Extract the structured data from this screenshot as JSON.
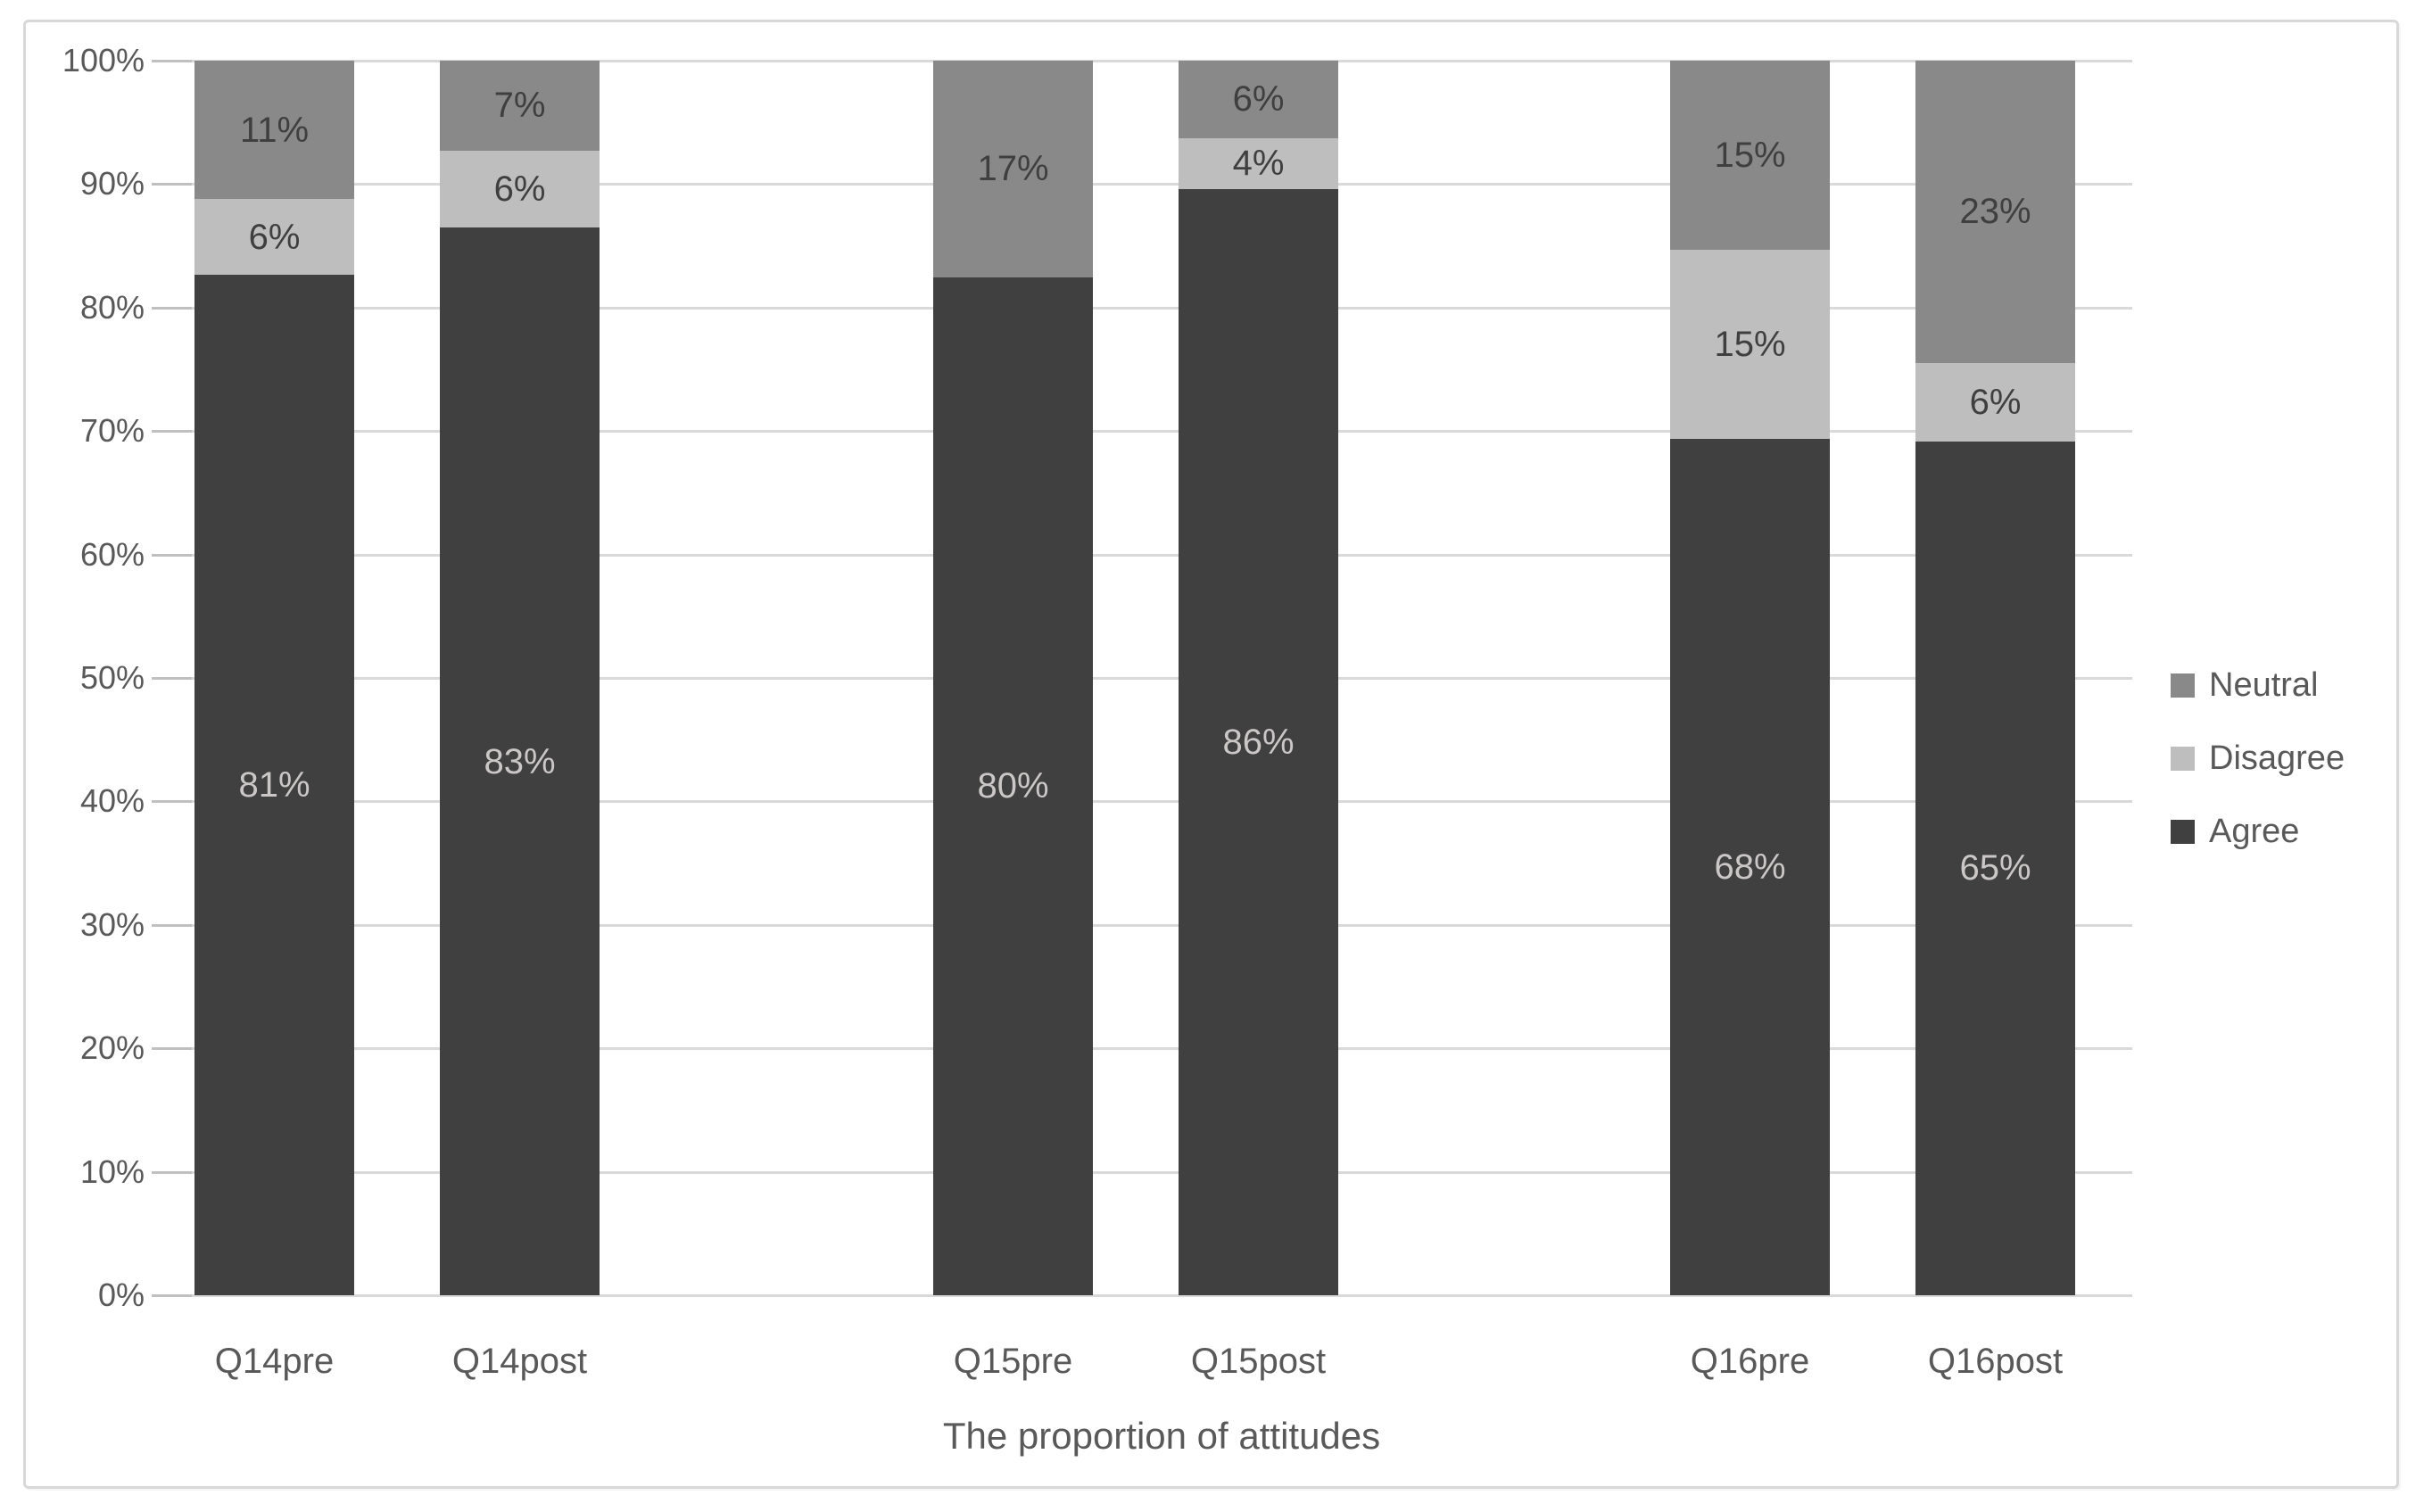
{
  "figure": {
    "x_axis_title": "The proportion of attitudes"
  },
  "y_axis": {
    "tick_labels": [
      "0%",
      "10%",
      "20%",
      "30%",
      "40%",
      "50%",
      "60%",
      "70%",
      "80%",
      "90%",
      "100%"
    ]
  },
  "legend": {
    "items": [
      {
        "label": "Neutral",
        "color": "#898989"
      },
      {
        "label": "Disagree",
        "color": "#bebebe"
      },
      {
        "label": "Agree",
        "color": "#404040"
      }
    ]
  },
  "colors": {
    "agree": "#404040",
    "disagree": "#bebebe",
    "neutral": "#898989",
    "gridline": "#d9d9d9",
    "axis_text": "#595959",
    "label_on_dark": "#cbc7c7",
    "label_on_light": "#3f3f3f"
  },
  "chart_data": {
    "type": "bar",
    "subtype": "stacked-100",
    "title": "",
    "xlabel": "The proportion of attitudes",
    "ylabel": "",
    "ylim": [
      0,
      100
    ],
    "y_ticks": [
      0,
      10,
      20,
      30,
      40,
      50,
      60,
      70,
      80,
      90,
      100
    ],
    "grid": true,
    "legend_position": "right",
    "categories": [
      "Q14pre",
      "Q14post",
      "Q15pre",
      "Q15post",
      "Q16pre",
      "Q16post"
    ],
    "series": [
      {
        "name": "Agree",
        "color": "#404040",
        "values": [
          81,
          83,
          80,
          86,
          68,
          65
        ],
        "data_labels": [
          "81%",
          "83%",
          "80%",
          "86%",
          "68%",
          "65%"
        ]
      },
      {
        "name": "Disagree",
        "color": "#bebebe",
        "values": [
          6,
          6,
          0,
          4,
          15,
          6
        ],
        "data_labels": [
          "6%",
          "6%",
          "",
          "4%",
          "15%",
          "6%"
        ]
      },
      {
        "name": "Neutral",
        "color": "#898989",
        "values": [
          11,
          7,
          17,
          6,
          15,
          23
        ],
        "data_labels": [
          "11%",
          "7%",
          "17%",
          "6%",
          "15%",
          "23%"
        ]
      }
    ]
  }
}
